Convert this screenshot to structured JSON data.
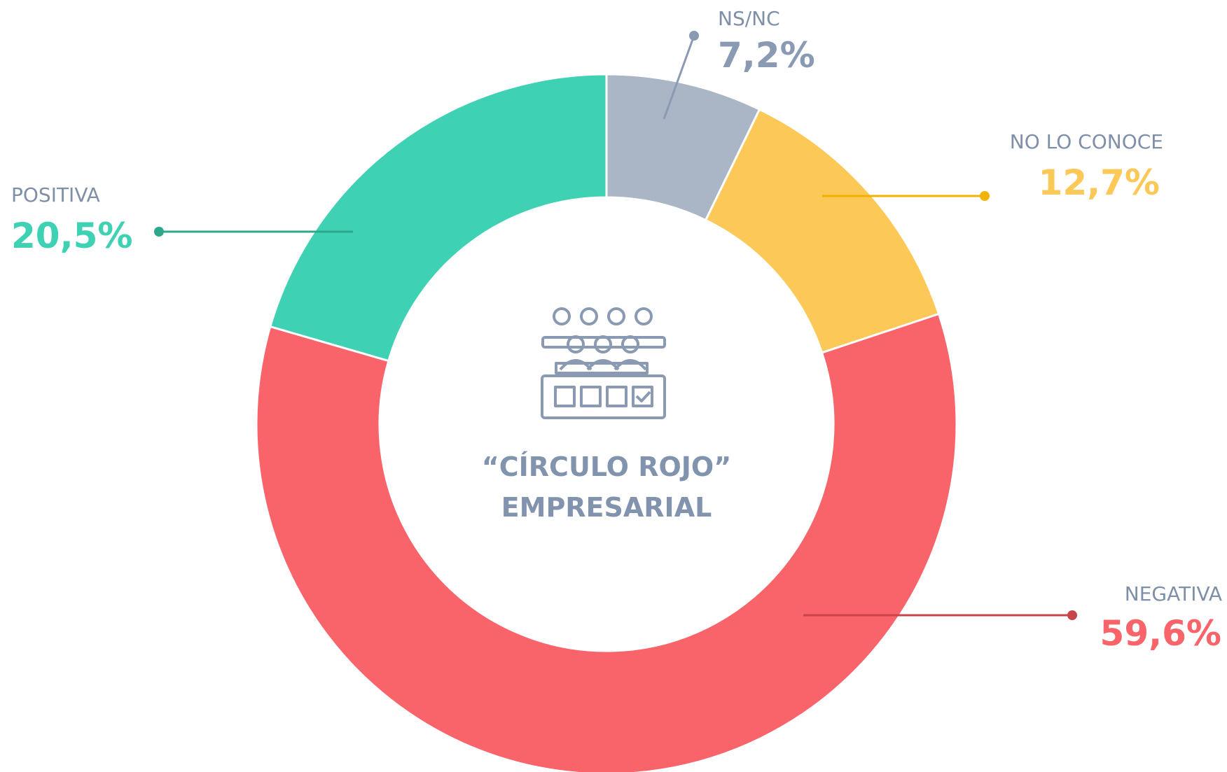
{
  "chart_data": {
    "type": "donut",
    "categories": [
      "NS/NC",
      "NO LO CONOCE",
      "NEGATIVA",
      "POSITIVA"
    ],
    "values": [
      7.2,
      12.7,
      59.6,
      20.5
    ],
    "value_labels": [
      "7,2%",
      "12,7%",
      "59,6%",
      "20,5%"
    ],
    "colors": [
      "#aab5c6",
      "#fcc858",
      "#f9646a",
      "#3ed1b3"
    ],
    "label_colors": [
      "#8b9ab3",
      "#fcc858",
      "#f9646a",
      "#3ed1b3"
    ],
    "line_colors": [
      "#8b9ab3",
      "#f2b200",
      "#c8434a",
      "#2ea88d"
    ],
    "center_label": [
      "“CÍRCULO ROJO”",
      "EMPRESARIAL"
    ]
  }
}
